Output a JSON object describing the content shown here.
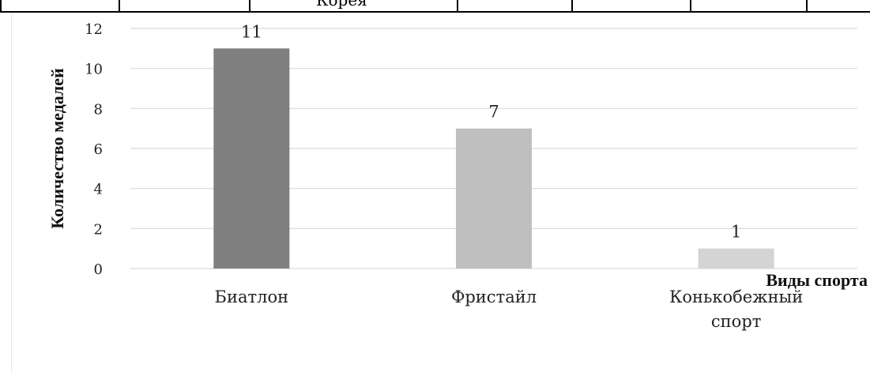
{
  "table_fragment": {
    "text": "Корея"
  },
  "chart_data": {
    "type": "bar",
    "categories": [
      "Биатлон",
      "Фристайл",
      "Конькобежный спорт"
    ],
    "category_lines": [
      [
        "Биатлон"
      ],
      [
        "Фристайл"
      ],
      [
        "Конькобежный",
        "спорт"
      ]
    ],
    "values": [
      11,
      7,
      1
    ],
    "data_labels": [
      "11",
      "7",
      "1"
    ],
    "bar_colors": [
      "#7f7f7f",
      "#bfbfbf",
      "#d4d4d4"
    ],
    "title": "",
    "xlabel": "Виды спорта",
    "ylabel": "Количество медалей",
    "ylim": [
      0,
      12
    ],
    "yticks": [
      0,
      2,
      4,
      6,
      8,
      10,
      12
    ],
    "grid": true,
    "gridline_color": "#d9d9d9"
  }
}
